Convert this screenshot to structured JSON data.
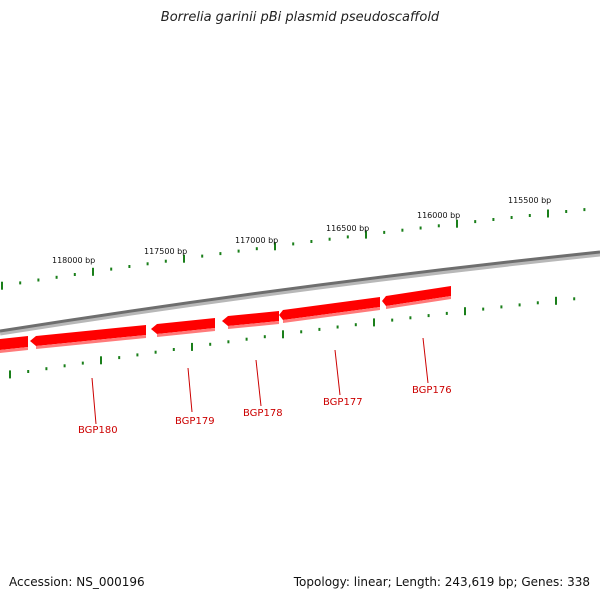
{
  "title": "Borrelia garinii pBi plasmid pseudoscaffold",
  "footer": {
    "accession": "Accession: NS_000196",
    "summary": "Topology: linear; Length: 243,619 bp; Genes: 338"
  },
  "colors": {
    "backbone": "#7a7a7a",
    "gene_fill": "#ff0000",
    "gene_shadow": "#ff7070",
    "tick": "#1a7f1a",
    "label": "#cc0000"
  },
  "scale_labels": [
    "118000 bp",
    "117500 bp",
    "117000 bp",
    "116500 bp",
    "116000 bp",
    "115500 bp"
  ],
  "genes": [
    {
      "id": "BGP180",
      "label": "BGP180",
      "strand": "-"
    },
    {
      "id": "BGP179",
      "label": "BGP179",
      "strand": "-"
    },
    {
      "id": "BGP178",
      "label": "BGP178",
      "strand": "-"
    },
    {
      "id": "BGP177",
      "label": "BGP177",
      "strand": "-"
    },
    {
      "id": "BGP176",
      "label": "BGP176",
      "strand": "-"
    }
  ]
}
